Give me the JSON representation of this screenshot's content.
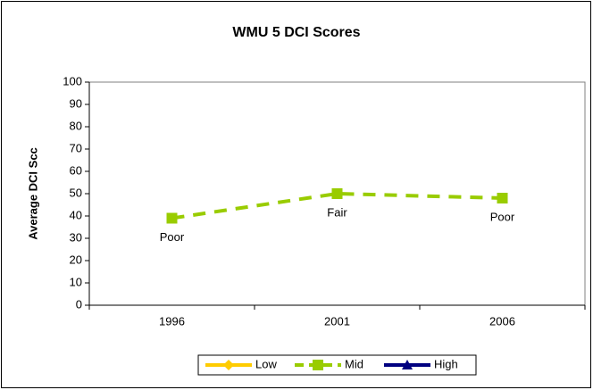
{
  "chart_data": {
    "type": "line",
    "title": "WMU 5 DCI Scores",
    "y_label": "Average DCI Scc",
    "categories": [
      "1996",
      "2001",
      "2006"
    ],
    "series": [
      {
        "name": "Low",
        "color": "#ffcc00",
        "marker": "diamond",
        "dash": false,
        "values": [
          null,
          null,
          null
        ]
      },
      {
        "name": "Mid",
        "color": "#99cc00",
        "marker": "square",
        "dash": true,
        "values": [
          39,
          50,
          48
        ]
      },
      {
        "name": "High",
        "color": "#000080",
        "marker": "triangle",
        "dash": false,
        "values": [
          null,
          null,
          null
        ]
      }
    ],
    "point_labels": [
      "Poor",
      "Fair",
      "Poor"
    ],
    "ylim": [
      0,
      100
    ],
    "yticks": [
      0,
      10,
      20,
      30,
      40,
      50,
      60,
      70,
      80,
      90,
      100
    ],
    "legend": "bottom"
  }
}
